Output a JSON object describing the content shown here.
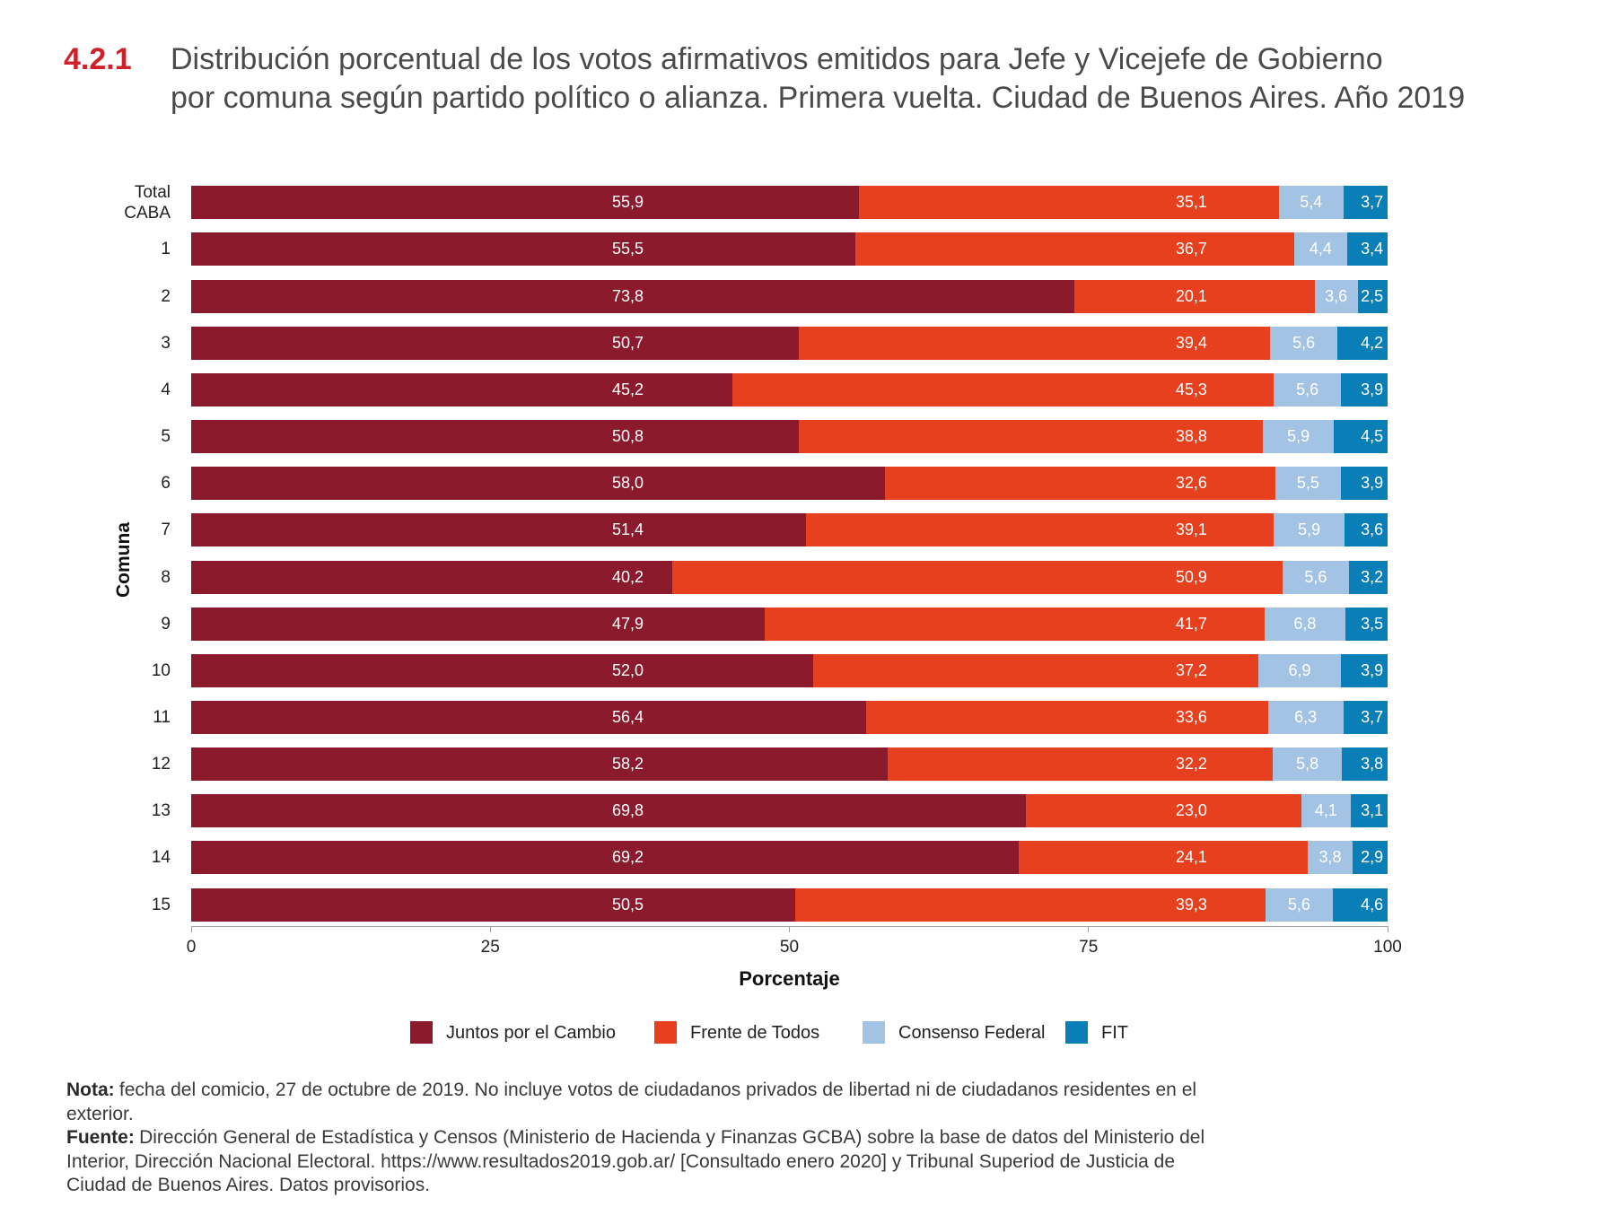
{
  "colors": {
    "accent": "#d0212b",
    "title_text": "#4a4a4a"
  },
  "title": {
    "number": "4.2.1",
    "lines": [
      "Distribución porcentual de los votos afirmativos emitidos para Jefe y Vicejefe de Gobierno",
      "por comuna según partido político o alianza. Primera vuelta. Ciudad de Buenos Aires. Año 2019"
    ]
  },
  "chart_data": {
    "type": "bar",
    "horizontal": true,
    "stacked": true,
    "xlabel": "Porcentaje",
    "ylabel": "Comuna",
    "xlim": [
      0,
      100
    ],
    "xticks": [
      0,
      25,
      50,
      75,
      100
    ],
    "grid": false,
    "legend": "bottom",
    "categories": [
      "Total CABA",
      "1",
      "2",
      "3",
      "4",
      "5",
      "6",
      "7",
      "8",
      "9",
      "10",
      "11",
      "12",
      "13",
      "14",
      "15"
    ],
    "series": [
      {
        "name": "Juntos por el Cambio",
        "color": "#8b1a2d",
        "values": [
          55.9,
          55.5,
          73.8,
          50.7,
          45.2,
          50.8,
          58.0,
          51.4,
          40.2,
          47.9,
          52.0,
          56.4,
          58.2,
          69.8,
          69.2,
          50.5
        ]
      },
      {
        "name": "Frente de Todos",
        "color": "#e6401e",
        "values": [
          35.1,
          36.7,
          20.1,
          39.4,
          45.3,
          38.8,
          32.6,
          39.1,
          50.9,
          41.7,
          37.2,
          33.6,
          32.2,
          23.0,
          24.1,
          39.3
        ]
      },
      {
        "name": "Consenso Federal",
        "color": "#a3c3e4",
        "values": [
          5.4,
          4.4,
          3.6,
          5.6,
          5.6,
          5.9,
          5.5,
          5.9,
          5.6,
          6.8,
          6.9,
          6.3,
          5.8,
          4.1,
          3.8,
          5.6
        ]
      },
      {
        "name": "FIT",
        "color": "#0a7eb7",
        "values": [
          3.7,
          3.4,
          2.5,
          4.2,
          3.9,
          4.5,
          3.9,
          3.6,
          3.2,
          3.5,
          3.9,
          3.7,
          3.8,
          3.1,
          2.9,
          4.6
        ]
      }
    ]
  },
  "notes": {
    "note": {
      "label": "Nota:",
      "lines": [
        "fecha del comicio, 27 de octubre de 2019. No incluye votos de ciudadanos privados de libertad ni de ciudadanos residentes en el",
        "exterior."
      ]
    },
    "source": {
      "label": "Fuente:",
      "lines": [
        "Dirección General de Estadística y Censos (Ministerio de Hacienda y Finanzas GCBA) sobre la base de datos del Ministerio del",
        "Interior, Dirección Nacional Electoral. https://www.resultados2019.gob.ar/ [Consultado enero 2020] y Tribunal Superiod de Justicia de",
        "Ciudad de Buenos Aires. Datos provisorios."
      ]
    }
  }
}
